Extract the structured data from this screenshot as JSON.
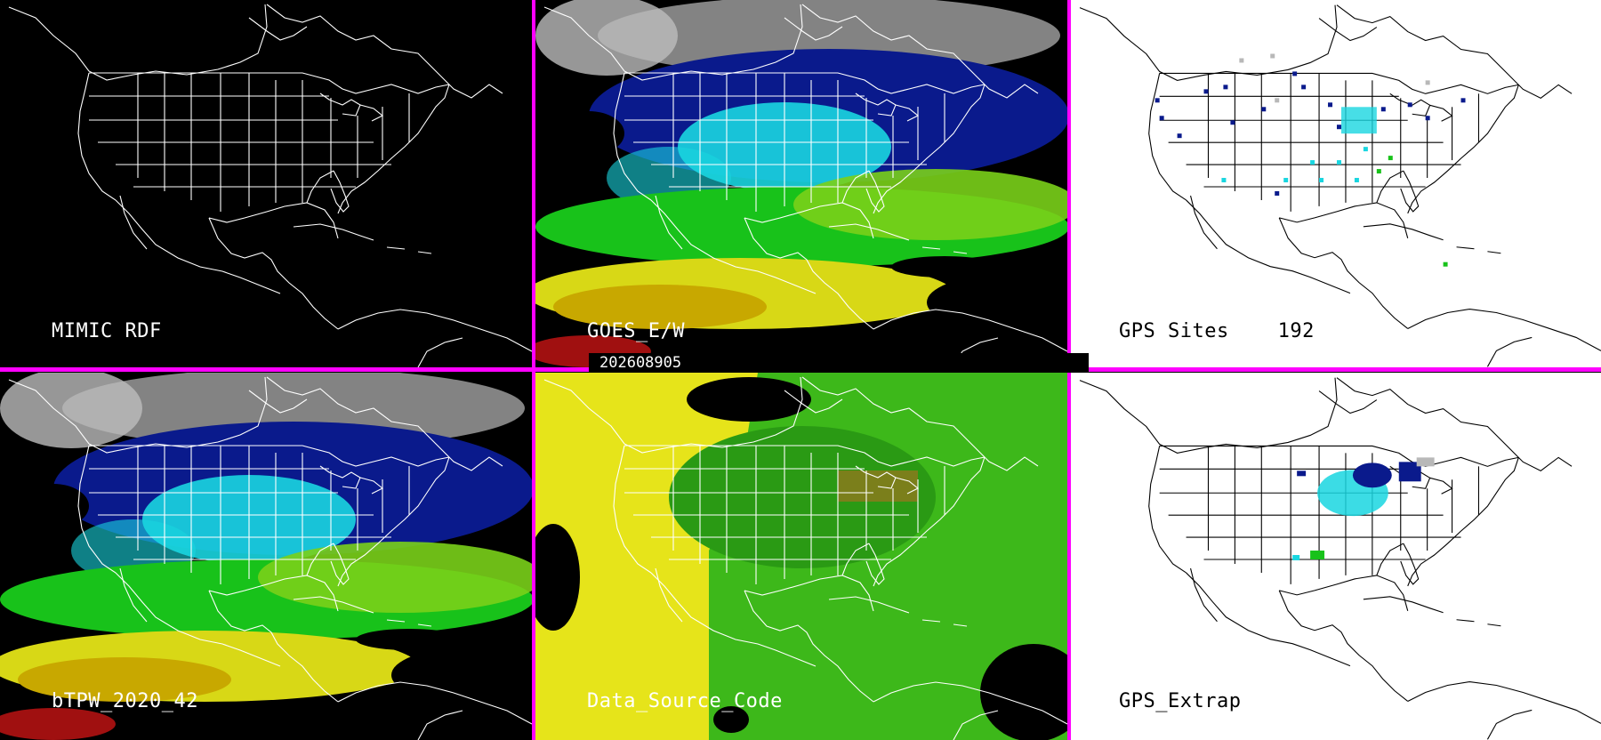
{
  "panels": [
    {
      "label": "MIMIC RDF",
      "background": "#000000",
      "fields": []
    },
    {
      "label": "GOES_E/W",
      "background": "#000000",
      "fields": [
        "clouds",
        "moisture"
      ]
    },
    {
      "label": "GPS Sites    192",
      "background": "#ffffff",
      "fields": [
        "sites"
      ]
    },
    {
      "label": "bTPW_2020_42",
      "background": "#000000",
      "fields": [
        "clouds",
        "moisture"
      ]
    },
    {
      "label": "Data_Source_Code",
      "background": "#000000",
      "fields": [
        "source-code"
      ]
    },
    {
      "label": "GPS_Extrap",
      "background": "#ffffff",
      "fields": [
        "extrap"
      ]
    }
  ],
  "timestamp": "202608905",
  "colors": {
    "divider": "#ff00ff",
    "map_lines_dark": "#ffffff",
    "map_lines_light": "#000000",
    "scale": [
      "#b8b8b8",
      "#0a1a8c",
      "#19d6e0",
      "#18c21a",
      "#7ad01a",
      "#d8d816",
      "#c8a800",
      "#a01010"
    ],
    "source_code": [
      "#e6e41a",
      "#3db81a",
      "#2a9a14",
      "#8a7a1c"
    ]
  }
}
